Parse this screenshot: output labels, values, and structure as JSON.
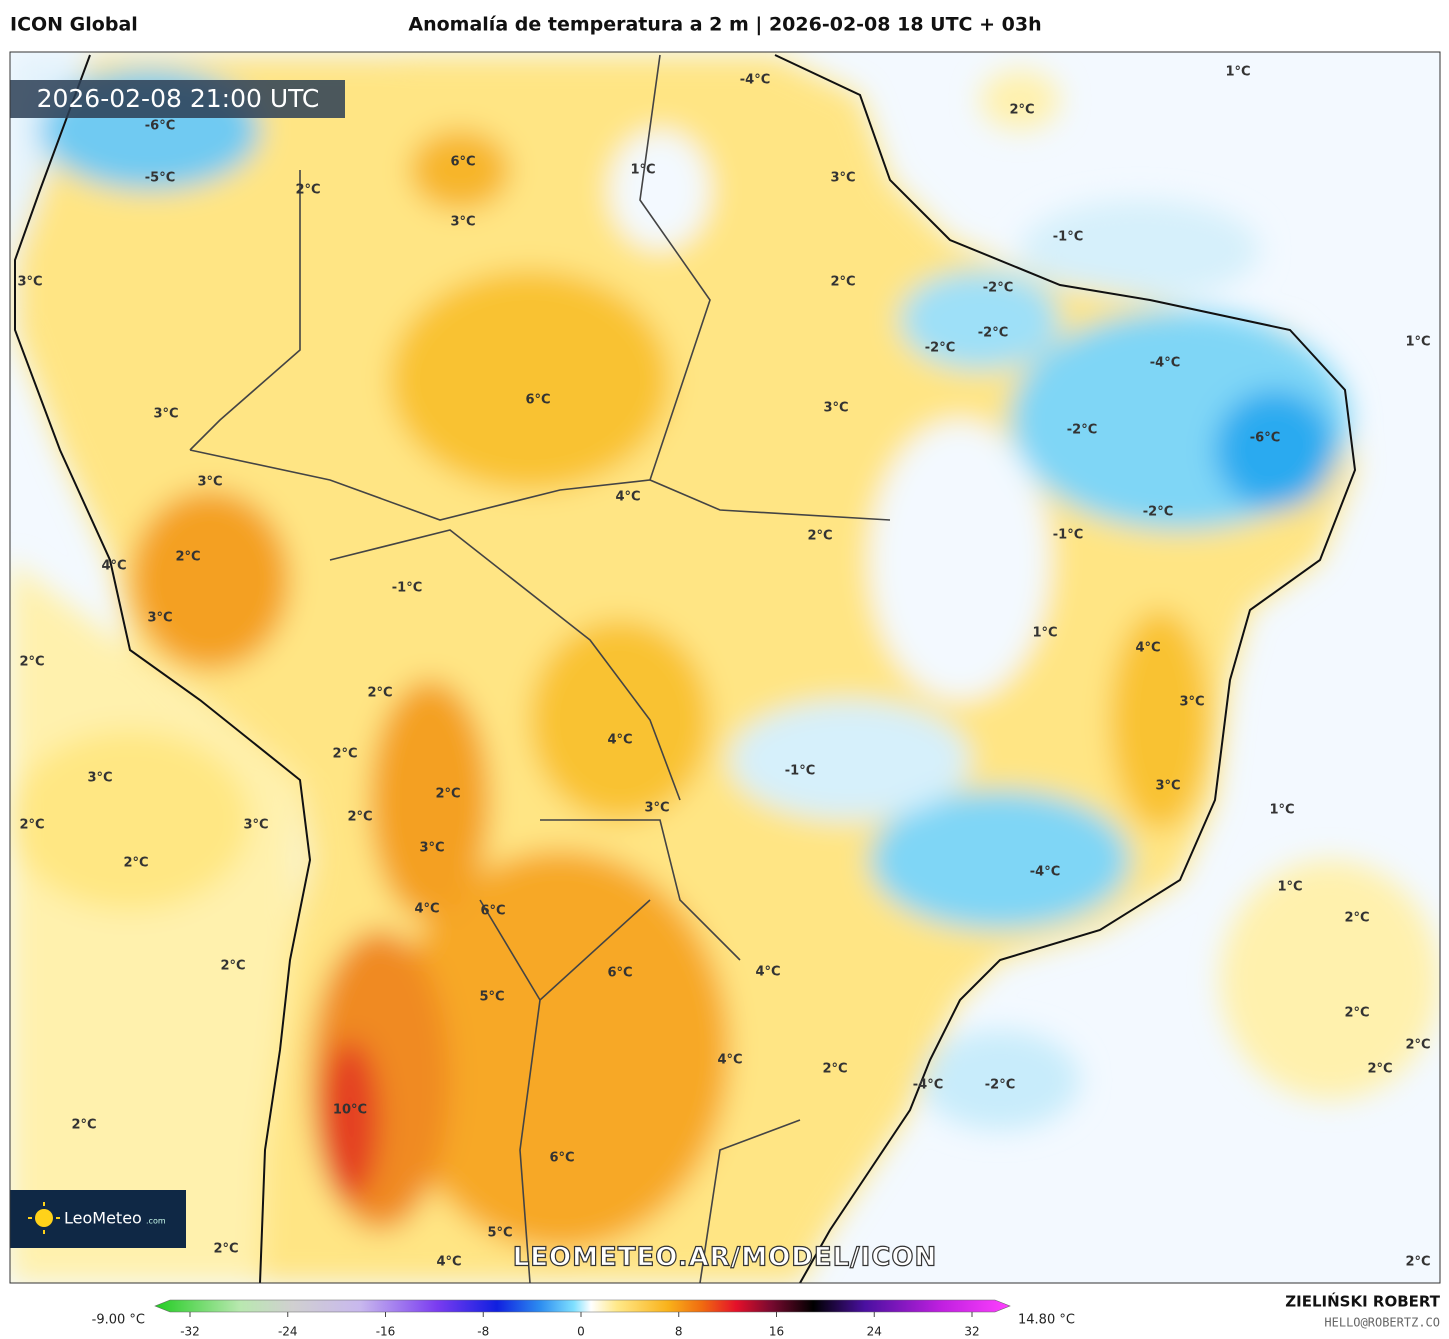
{
  "header": {
    "model": "ICON Global",
    "title": "Anomalía de temperatura a 2 m | 2026-02-08 18 UTC + 03h"
  },
  "map": {
    "valid_time": "2026-02-08 21:00 UTC",
    "watermark": "LEOMETEO.AR/MODEL/ICON",
    "logo": {
      "name": "LeoMeteo",
      "suffix": ".com"
    },
    "labels": [
      "1°C",
      "2°C",
      "-6°C",
      "-4°C",
      "6°C",
      "1°C",
      "-5°C",
      "3°C",
      "2°C",
      "3°C",
      "-1°C",
      "3°C",
      "2°C",
      "-2°C",
      "-2°C",
      "-2°C",
      "1°C",
      "-4°C",
      "6°C",
      "3°C",
      "3°C",
      "-2°C",
      "-6°C",
      "3°C",
      "4°C",
      "-2°C",
      "2°C",
      "-1°C",
      "2°C",
      "4°C",
      "-1°C",
      "3°C",
      "1°C",
      "4°C",
      "2°C",
      "2°C",
      "3°C",
      "4°C",
      "2°C",
      "-1°C",
      "3°C",
      "3°C",
      "2°C",
      "3°C",
      "1°C",
      "2°C",
      "2°C",
      "3°C",
      "3°C",
      "2°C",
      "-4°C",
      "1°C",
      "4°C",
      "6°C",
      "2°C",
      "2°C",
      "6°C",
      "4°C",
      "5°C",
      "2°C",
      "2°C",
      "4°C",
      "2°C",
      "2°C",
      "-4°C",
      "-2°C",
      "10°C",
      "2°C",
      "6°C",
      "5°C",
      "2°C",
      "4°C",
      "2°C"
    ]
  },
  "colorbar": {
    "min_label": "-9.00 °C",
    "max_label": "14.80 °C",
    "ticks": [
      -32,
      -24,
      -16,
      -8,
      0,
      8,
      16,
      24,
      32
    ]
  },
  "footer": {
    "author": "ZIELIŃSKI ROBERT",
    "contact": "HELLO@ROBERTZ.CO"
  }
}
